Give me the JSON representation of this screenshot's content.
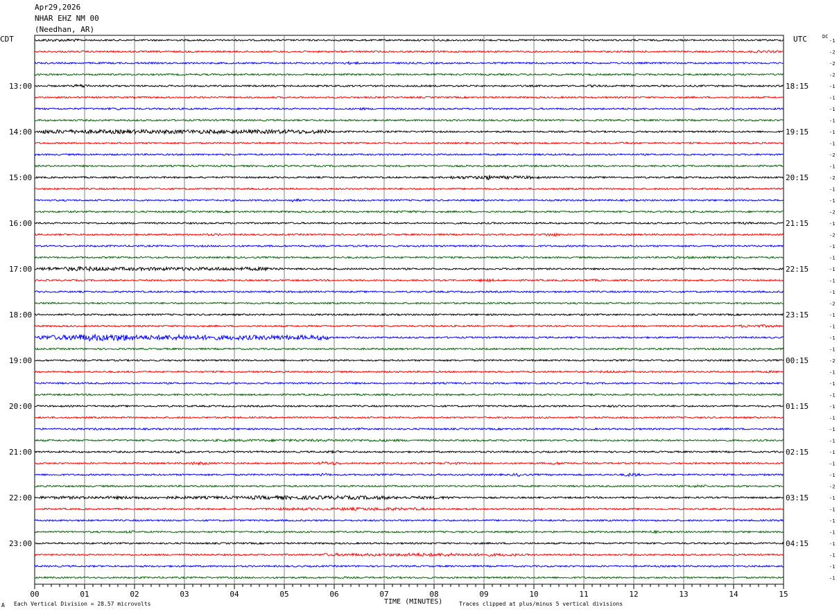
{
  "header": {
    "date": "Apr29,2026",
    "station": "NHAR EHZ NM 00",
    "location": "(Needhan, AR)"
  },
  "left_zone_label": "CDT",
  "right_zone_label": "UTC",
  "dc_label": "DC",
  "footer": {
    "scale_note": "Each Vertical Division =   28.57 microvolts",
    "clip_note": "Traces clipped at plus/minus 5 vertical divisions",
    "x_title": "TIME (MINUTES)",
    "corner_mark": "A"
  },
  "colors": {
    "trace_cycle": [
      "#000000",
      "#ff0000",
      "#0000ff",
      "#006400"
    ],
    "grid": "#808080",
    "background": "#ffffff"
  },
  "chart_data": {
    "type": "line",
    "title": "",
    "xlabel": "TIME (MINUTES)",
    "xlim": [
      0,
      15
    ],
    "x_ticks": [
      "00",
      "01",
      "02",
      "03",
      "04",
      "05",
      "06",
      "07",
      "08",
      "09",
      "10",
      "11",
      "12",
      "13",
      "14",
      "15"
    ],
    "left_hour_labels": [
      "13:00",
      "14:00",
      "15:00",
      "16:00",
      "17:00",
      "18:00",
      "19:00",
      "20:00",
      "21:00",
      "22:00",
      "23:00"
    ],
    "right_hour_labels": [
      "18:15",
      "19:15",
      "20:15",
      "21:15",
      "22:15",
      "23:15",
      "00:15",
      "01:15",
      "02:15",
      "03:15",
      "04:15"
    ],
    "first_labeled_row": 4,
    "rows_per_hour": 4,
    "dc_offsets": [
      "-1",
      "-2",
      "-2",
      "-2",
      "-1",
      "-1",
      "-1",
      "-1",
      "-1",
      "-1",
      "-2",
      "-1",
      "-2",
      "-1",
      "-1",
      "-2",
      "-1",
      "-2",
      "-1",
      "-1",
      "-1",
      "-1",
      "-1",
      "-2",
      "-1",
      "-1",
      "-1",
      "-1",
      "-2",
      "-1",
      "-1",
      "-1",
      "-1",
      "-1",
      "-1",
      "-1",
      "-1",
      "-1",
      "-1",
      "-2",
      "-1",
      "-1",
      "-1",
      "-1",
      "-1",
      "-1",
      "-1",
      "-1"
    ],
    "rows": [
      {
        "activity": [
          [
            0,
            1,
            1.6
          ]
        ]
      },
      {
        "activity": [
          [
            14.2,
            15,
            1.4
          ]
        ]
      },
      {
        "activity": [
          [
            6.1,
            6.6,
            1.6
          ]
        ]
      },
      {
        "activity": []
      },
      {
        "activity": [
          [
            0.7,
            1.2,
            2.0
          ],
          [
            11.1,
            11.4,
            1.3
          ]
        ]
      },
      {
        "activity": []
      },
      {
        "activity": [
          [
            1.5,
            1.8,
            1.4
          ],
          [
            6.3,
            6.8,
            1.4
          ]
        ]
      },
      {
        "activity": []
      },
      {
        "activity": [
          [
            0,
            6,
            2.4
          ]
        ]
      },
      {
        "activity": [
          [
            9.6,
            9.9,
            1.3
          ],
          [
            11.5,
            12.2,
            1.3
          ]
        ]
      },
      {
        "activity": []
      },
      {
        "activity": []
      },
      {
        "activity": [
          [
            8.2,
            10.2,
            1.8
          ],
          [
            8.9,
            9.3,
            3.0
          ]
        ]
      },
      {
        "activity": []
      },
      {
        "activity": [
          [
            5.0,
            5.4,
            2.0
          ]
        ]
      },
      {
        "activity": [
          [
            7.0,
            8.0,
            1.3
          ]
        ]
      },
      {
        "activity": [
          [
            14.0,
            14.5,
            1.4
          ]
        ]
      },
      {
        "activity": [
          [
            3.3,
            3.9,
            1.3
          ],
          [
            10.1,
            10.6,
            2.0
          ]
        ]
      },
      {
        "activity": []
      },
      {
        "activity": [
          [
            12.5,
            14.2,
            1.3
          ]
        ]
      },
      {
        "activity": [
          [
            0,
            5,
            2.0
          ],
          [
            0.5,
            1.6,
            2.6
          ]
        ]
      },
      {
        "activity": [
          [
            8.9,
            9.2,
            1.6
          ],
          [
            10.8,
            11.5,
            1.3
          ]
        ]
      },
      {
        "activity": []
      },
      {
        "activity": []
      },
      {
        "activity": []
      },
      {
        "activity": [
          [
            14.0,
            15,
            1.6
          ]
        ]
      },
      {
        "activity": [
          [
            0,
            6,
            2.8
          ],
          [
            0.6,
            2.1,
            4.0
          ],
          [
            2.4,
            3.4,
            3.2
          ]
        ]
      },
      {
        "activity": []
      },
      {
        "activity": []
      },
      {
        "activity": [
          [
            11.2,
            12.0,
            1.3
          ],
          [
            14.5,
            15,
            1.3
          ]
        ]
      },
      {
        "activity": []
      },
      {
        "activity": []
      },
      {
        "activity": [
          [
            11.5,
            11.8,
            1.3
          ]
        ]
      },
      {
        "activity": []
      },
      {
        "activity": [
          [
            1.0,
            1.5,
            1.3
          ],
          [
            6.3,
            6.7,
            1.3
          ]
        ]
      },
      {
        "activity": [
          [
            3.5,
            7.5,
            1.4
          ]
        ]
      },
      {
        "activity": [
          [
            2.8,
            3.1,
            1.5
          ],
          [
            5.8,
            6.1,
            1.4
          ]
        ]
      },
      {
        "activity": [
          [
            3.0,
            3.6,
            1.8
          ],
          [
            5.6,
            6.2,
            2.0
          ],
          [
            8.0,
            8.6,
            1.6
          ],
          [
            10.3,
            10.7,
            1.6
          ]
        ]
      },
      {
        "activity": [
          [
            5.6,
            6.0,
            1.8
          ],
          [
            9.5,
            9.9,
            2.0
          ],
          [
            11.7,
            12.2,
            2.0
          ]
        ]
      },
      {
        "activity": [
          [
            13.0,
            13.6,
            1.6
          ]
        ]
      },
      {
        "activity": [
          [
            0,
            8.5,
            1.7
          ],
          [
            4.2,
            7.2,
            2.2
          ],
          [
            12.3,
            12.8,
            1.3
          ]
        ]
      },
      {
        "activity": [
          [
            4.5,
            8.0,
            1.5
          ],
          [
            6.0,
            7.5,
            1.8
          ]
        ]
      },
      {
        "activity": []
      },
      {
        "activity": [
          [
            1.8,
            2.0,
            1.5
          ],
          [
            12.2,
            12.6,
            1.5
          ]
        ]
      },
      {
        "activity": []
      },
      {
        "activity": [
          [
            5.6,
            9.8,
            1.6
          ],
          [
            7.2,
            8.8,
            2.0
          ]
        ]
      },
      {
        "activity": []
      },
      {
        "activity": [
          [
            6.0,
            6.4,
            1.3
          ]
        ]
      }
    ]
  }
}
